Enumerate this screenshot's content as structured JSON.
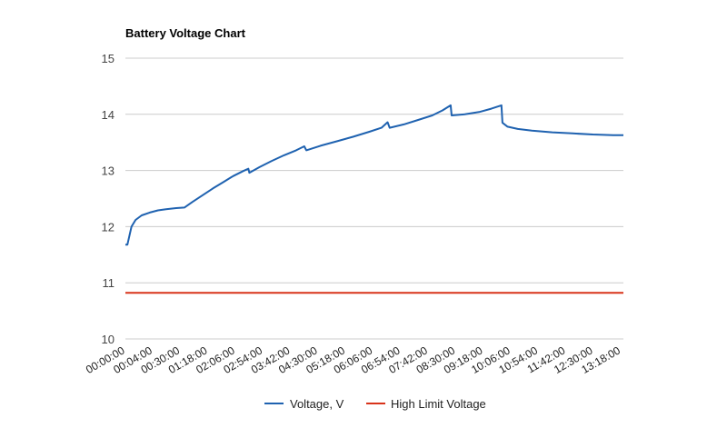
{
  "chart_data": {
    "type": "line",
    "title": "Battery Voltage Chart",
    "xlabel": "",
    "ylabel": "",
    "ylim": [
      10,
      15
    ],
    "yticks": [
      10,
      11,
      12,
      13,
      14,
      15
    ],
    "grid": true,
    "legend": "bottom",
    "x_tick_labels": [
      "00:00:00",
      "00:04:00",
      "00:30:00",
      "01:18:00",
      "02:06:00",
      "02:54:00",
      "03:42:00",
      "04:30:00",
      "05:18:00",
      "06:06:00",
      "06:54:00",
      "07:42:00",
      "08:30:00",
      "09:18:00",
      "10:06:00",
      "10:54:00",
      "11:42:00",
      "12:30:00",
      "13:18:00"
    ],
    "series": [
      {
        "name": "Voltage, V",
        "color": "#1f62b0",
        "points": [
          [
            0,
            11.68
          ],
          [
            0.1,
            11.68
          ],
          [
            0.3,
            12.0
          ],
          [
            0.5,
            12.12
          ],
          [
            0.8,
            12.2
          ],
          [
            1.2,
            12.25
          ],
          [
            1.6,
            12.29
          ],
          [
            2.0,
            12.31
          ],
          [
            2.5,
            12.33
          ],
          [
            2.9,
            12.34
          ],
          [
            3.3,
            12.44
          ],
          [
            3.8,
            12.56
          ],
          [
            4.3,
            12.68
          ],
          [
            4.8,
            12.79
          ],
          [
            5.3,
            12.9
          ],
          [
            5.8,
            12.99
          ],
          [
            6.05,
            13.03
          ],
          [
            6.1,
            12.96
          ],
          [
            6.6,
            13.06
          ],
          [
            7.2,
            13.17
          ],
          [
            7.8,
            13.27
          ],
          [
            8.4,
            13.36
          ],
          [
            8.8,
            13.43
          ],
          [
            8.9,
            13.36
          ],
          [
            9.6,
            13.44
          ],
          [
            10.4,
            13.52
          ],
          [
            11.2,
            13.6
          ],
          [
            12.0,
            13.69
          ],
          [
            12.6,
            13.76
          ],
          [
            12.9,
            13.86
          ],
          [
            13.0,
            13.76
          ],
          [
            13.7,
            13.82
          ],
          [
            14.4,
            13.9
          ],
          [
            15.1,
            13.98
          ],
          [
            15.6,
            14.07
          ],
          [
            16.0,
            14.16
          ],
          [
            16.05,
            13.98
          ],
          [
            16.7,
            14.0
          ],
          [
            17.4,
            14.04
          ],
          [
            18.0,
            14.1
          ],
          [
            18.5,
            14.16
          ],
          [
            18.55,
            13.85
          ],
          [
            18.8,
            13.78
          ],
          [
            19.3,
            13.74
          ],
          [
            20.0,
            13.71
          ],
          [
            21.0,
            13.68
          ],
          [
            22.0,
            13.66
          ],
          [
            23.0,
            13.64
          ],
          [
            24.0,
            13.63
          ],
          [
            24.5,
            13.63
          ]
        ]
      },
      {
        "name": "High Limit Voltage",
        "color": "#d8331a",
        "points": [
          [
            0,
            10.82
          ],
          [
            24.5,
            10.82
          ]
        ]
      }
    ]
  }
}
